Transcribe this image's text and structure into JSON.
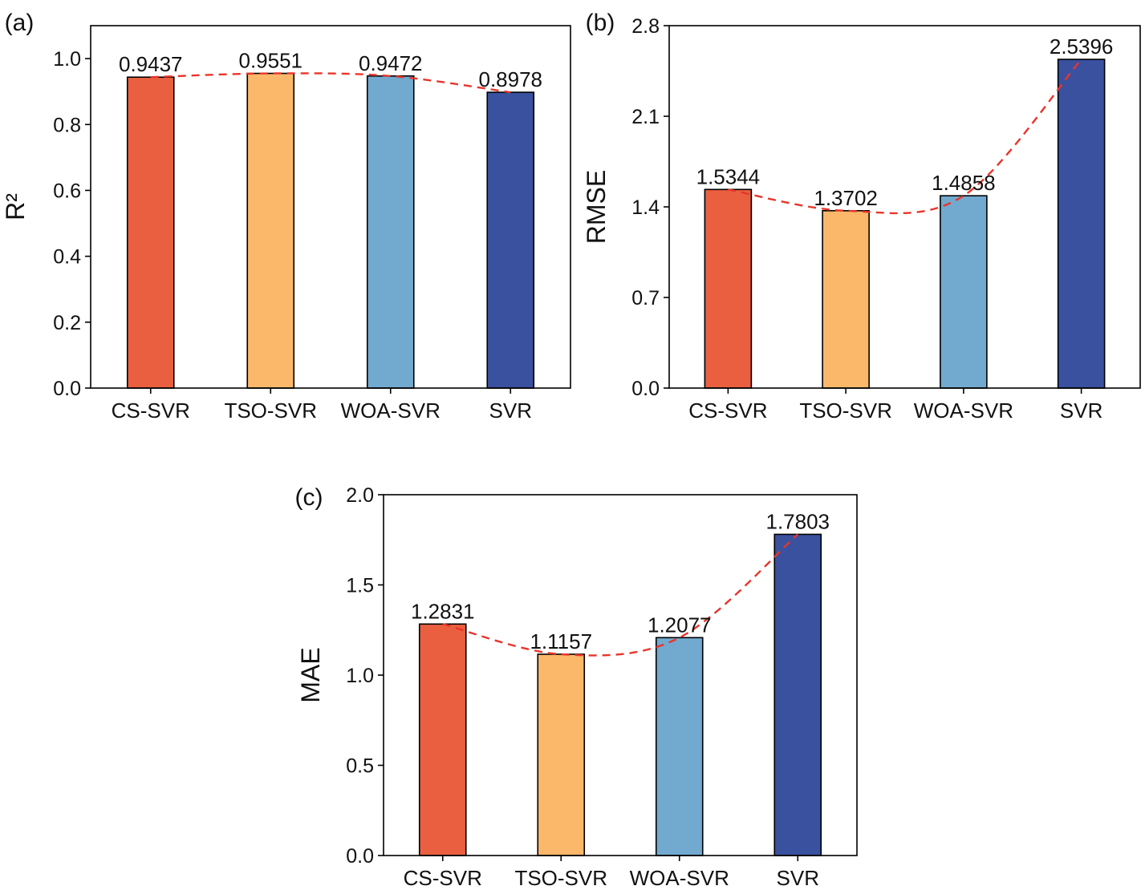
{
  "colors": {
    "bars": [
      "#ea5f3f",
      "#fbb86b",
      "#72a9cf",
      "#3a51a0"
    ],
    "trend": "#e8352b",
    "axis": "#000000"
  },
  "chart_data": [
    {
      "type": "bar",
      "panel_label": "(a)",
      "title": "",
      "xlabel": "",
      "ylabel": "R²",
      "categories": [
        "CS-SVR",
        "TSO-SVR",
        "WOA-SVR",
        "SVR"
      ],
      "values": [
        0.9437,
        0.9551,
        0.9472,
        0.8978
      ],
      "data_labels": [
        "0.9437",
        "0.9551",
        "0.9472",
        "0.8978"
      ],
      "ylim": [
        0,
        1.1
      ],
      "yticks": [
        0.0,
        0.2,
        0.4,
        0.6,
        0.8,
        1.0
      ],
      "ytick_labels": [
        "0.0",
        "0.2",
        "0.4",
        "0.6",
        "0.8",
        "1.0"
      ],
      "trend_line": "dashed smooth curve through bar tops",
      "grid": false
    },
    {
      "type": "bar",
      "panel_label": "(b)",
      "title": "",
      "xlabel": "",
      "ylabel": "RMSE",
      "categories": [
        "CS-SVR",
        "TSO-SVR",
        "WOA-SVR",
        "SVR"
      ],
      "values": [
        1.5344,
        1.3702,
        1.4858,
        2.5396
      ],
      "data_labels": [
        "1.5344",
        "1.3702",
        "1.4858",
        "2.5396"
      ],
      "ylim": [
        0,
        2.8
      ],
      "yticks": [
        0.0,
        0.7,
        1.4,
        2.1,
        2.8
      ],
      "ytick_labels": [
        "0.0",
        "0.7",
        "1.4",
        "2.1",
        "2.8"
      ],
      "trend_line": "dashed smooth curve through bar tops",
      "grid": false
    },
    {
      "type": "bar",
      "panel_label": "(c)",
      "title": "",
      "xlabel": "",
      "ylabel": "MAE",
      "categories": [
        "CS-SVR",
        "TSO-SVR",
        "WOA-SVR",
        "SVR"
      ],
      "values": [
        1.2831,
        1.1157,
        1.2077,
        1.7803
      ],
      "data_labels": [
        "1.2831",
        "1.1157",
        "1.2077",
        "1.7803"
      ],
      "ylim": [
        0,
        2.0
      ],
      "yticks": [
        0.0,
        0.5,
        1.0,
        1.5,
        2.0
      ],
      "ytick_labels": [
        "0.0",
        "0.5",
        "1.0",
        "1.5",
        "2.0"
      ],
      "trend_line": "dashed smooth curve through bar tops",
      "grid": false
    }
  ]
}
